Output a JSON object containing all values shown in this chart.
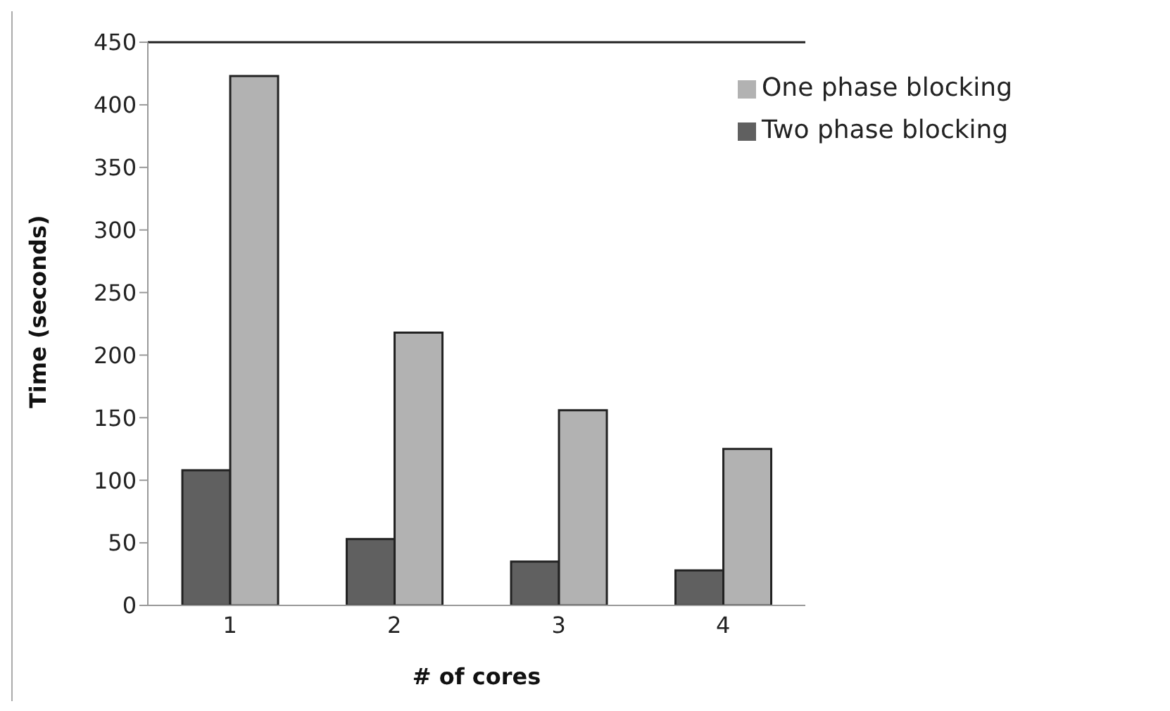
{
  "chart_data": {
    "type": "bar",
    "xlabel": "# of cores",
    "ylabel": "Time (seconds)",
    "categories": [
      "1",
      "2",
      "3",
      "4"
    ],
    "series": [
      {
        "name": "Two phase blocking",
        "color": "#606060",
        "values": [
          108,
          53,
          35,
          28
        ]
      },
      {
        "name": "One phase blocking",
        "color": "#b2b2b2",
        "values": [
          423,
          218,
          156,
          125
        ]
      }
    ],
    "ylim": [
      0,
      450
    ],
    "yticks": [
      0,
      50,
      100,
      150,
      200,
      250,
      300,
      350,
      400,
      450
    ],
    "grid": false,
    "legend": "top right"
  }
}
